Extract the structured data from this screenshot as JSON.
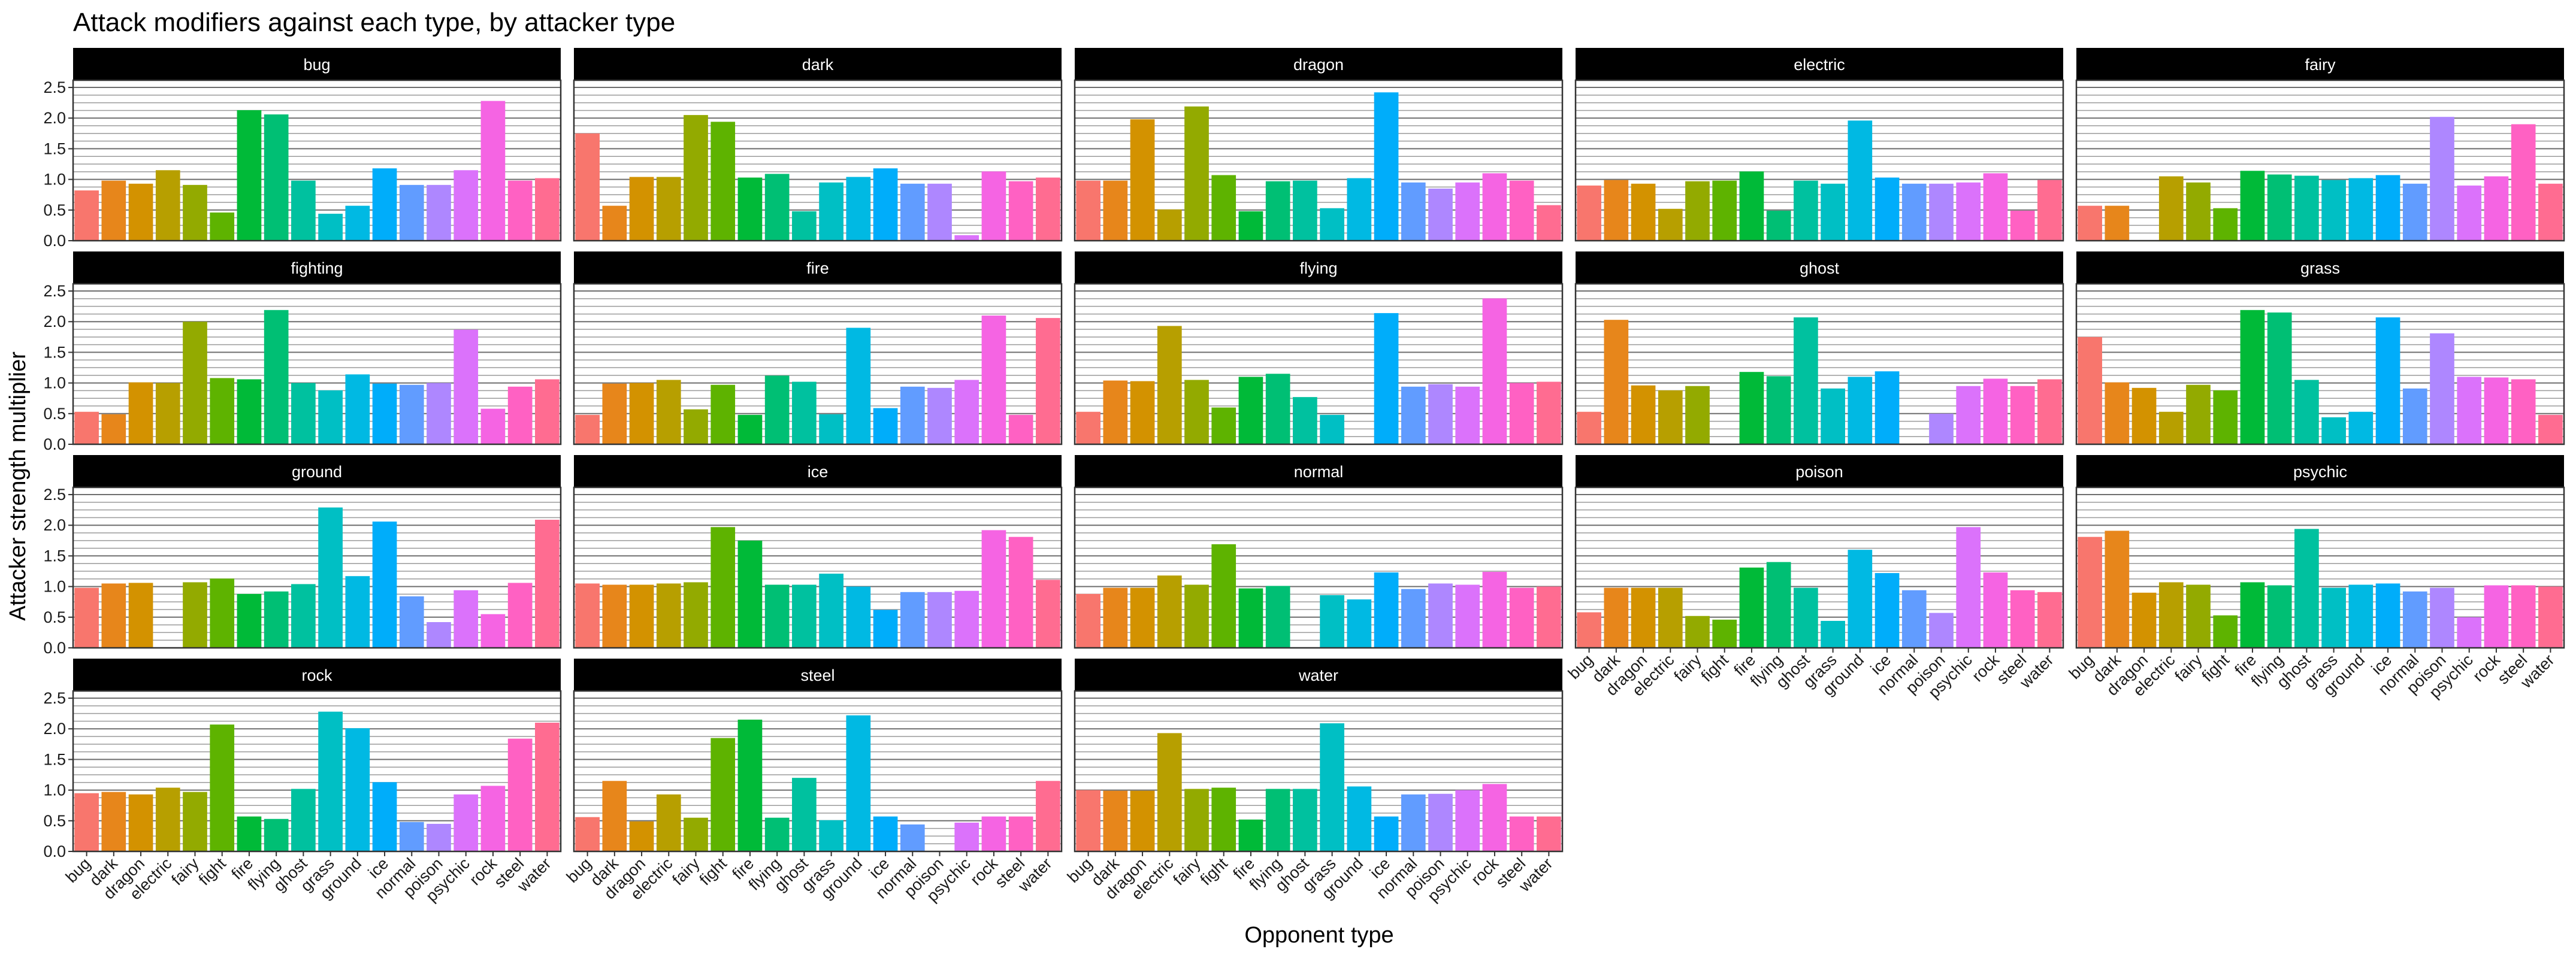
{
  "chart_data": {
    "type": "bar",
    "title": "Attack modifiers against each type, by attacker type",
    "xlabel": "Opponent type",
    "ylabel": "Attacker strength multiplier",
    "ylim": [
      0,
      2.5
    ],
    "yticks": [
      "0.0",
      "0.5",
      "1.0",
      "1.5",
      "2.0",
      "2.5"
    ],
    "categories": [
      "bug",
      "dark",
      "dragon",
      "electric",
      "fairy",
      "fight",
      "fire",
      "flying",
      "ghost",
      "grass",
      "ground",
      "ice",
      "normal",
      "poison",
      "psychic",
      "rock",
      "steel",
      "water"
    ],
    "colors": [
      "#F8766D",
      "#E7861B",
      "#D39200",
      "#B79F00",
      "#93AA00",
      "#5EB300",
      "#00BA38",
      "#00BF74",
      "#00C19F",
      "#00BFC4",
      "#00B9E3",
      "#00ADFA",
      "#619CFF",
      "#AE87FF",
      "#DB72FB",
      "#F564E3",
      "#FF61C3",
      "#FF6C91"
    ],
    "facets": [
      {
        "name": "bug",
        "values": [
          0.82,
          0.98,
          0.93,
          1.15,
          0.91,
          0.46,
          2.13,
          2.06,
          0.98,
          0.44,
          0.57,
          1.18,
          0.91,
          0.91,
          1.15,
          2.28,
          0.98,
          1.02
        ]
      },
      {
        "name": "dark",
        "values": [
          1.75,
          0.57,
          1.04,
          1.04,
          2.05,
          1.94,
          1.03,
          1.09,
          0.48,
          0.95,
          1.04,
          1.18,
          0.93,
          0.93,
          0.09,
          1.13,
          0.97,
          1.03
        ]
      },
      {
        "name": "dragon",
        "values": [
          0.98,
          0.98,
          1.98,
          0.51,
          2.19,
          1.07,
          0.48,
          0.97,
          0.98,
          0.53,
          1.02,
          2.42,
          0.95,
          0.85,
          0.95,
          1.1,
          0.98,
          0.58
        ]
      },
      {
        "name": "electric",
        "values": [
          0.9,
          0.99,
          0.93,
          0.52,
          0.97,
          0.98,
          1.13,
          0.49,
          0.98,
          0.93,
          1.96,
          1.03,
          0.93,
          0.93,
          0.95,
          1.1,
          0.49,
          0.99
        ]
      },
      {
        "name": "fairy",
        "values": [
          0.57,
          0.57,
          0.0,
          1.05,
          0.95,
          0.53,
          1.14,
          1.08,
          1.06,
          0.99,
          1.02,
          1.07,
          0.93,
          2.02,
          0.9,
          1.05,
          1.9,
          0.93
        ]
      },
      {
        "name": "fighting",
        "values": [
          0.53,
          0.49,
          1.01,
          1.0,
          2.0,
          1.08,
          1.06,
          2.19,
          1.0,
          0.88,
          1.14,
          0.99,
          0.97,
          1.0,
          1.87,
          0.58,
          0.94,
          1.06
        ]
      },
      {
        "name": "fire",
        "values": [
          0.48,
          0.99,
          1.0,
          1.05,
          0.57,
          0.97,
          0.48,
          1.12,
          1.02,
          0.49,
          1.9,
          0.59,
          0.94,
          0.92,
          1.05,
          2.1,
          0.48,
          2.06
        ]
      },
      {
        "name": "flying",
        "values": [
          0.53,
          1.04,
          1.03,
          1.93,
          1.05,
          0.6,
          1.1,
          1.15,
          0.77,
          0.48,
          0.0,
          2.14,
          0.94,
          0.98,
          0.94,
          2.38,
          1.0,
          1.02
        ]
      },
      {
        "name": "ghost",
        "values": [
          0.53,
          2.03,
          0.96,
          0.88,
          0.95,
          0.0,
          1.18,
          1.11,
          2.07,
          0.91,
          1.1,
          1.19,
          0.0,
          0.5,
          0.95,
          1.07,
          0.95,
          1.06
        ]
      },
      {
        "name": "grass",
        "values": [
          1.75,
          1.01,
          0.92,
          0.53,
          0.97,
          0.88,
          2.19,
          2.15,
          1.05,
          0.44,
          0.53,
          2.07,
          0.91,
          1.81,
          1.1,
          1.09,
          1.06,
          0.48
        ]
      },
      {
        "name": "ground",
        "values": [
          0.98,
          1.05,
          1.06,
          0.0,
          1.07,
          1.13,
          0.88,
          0.92,
          1.04,
          2.29,
          1.17,
          2.06,
          0.84,
          0.42,
          0.94,
          0.55,
          1.06,
          2.09
        ]
      },
      {
        "name": "ice",
        "values": [
          1.05,
          1.03,
          1.03,
          1.05,
          1.07,
          1.97,
          1.75,
          1.03,
          1.03,
          1.21,
          1.0,
          0.62,
          0.91,
          0.91,
          0.93,
          1.92,
          1.81,
          1.11
        ]
      },
      {
        "name": "normal",
        "values": [
          0.88,
          0.98,
          0.98,
          1.18,
          1.03,
          1.69,
          0.97,
          1.01,
          0.0,
          0.86,
          0.79,
          1.23,
          0.96,
          1.05,
          1.03,
          1.24,
          0.98,
          1.0
        ]
      },
      {
        "name": "poison",
        "values": [
          0.58,
          0.98,
          0.98,
          0.98,
          0.52,
          0.46,
          1.31,
          1.4,
          0.98,
          0.44,
          1.6,
          1.22,
          0.94,
          0.57,
          1.97,
          1.23,
          0.94,
          0.91
        ]
      },
      {
        "name": "psychic",
        "values": [
          1.81,
          1.91,
          0.9,
          1.07,
          1.03,
          0.53,
          1.07,
          1.02,
          1.94,
          0.98,
          1.03,
          1.05,
          0.92,
          0.98,
          0.5,
          1.02,
          1.02,
          1.0
        ]
      },
      {
        "name": "rock",
        "values": [
          0.95,
          0.97,
          0.93,
          1.04,
          0.97,
          2.07,
          0.57,
          0.53,
          1.02,
          2.28,
          2.01,
          1.13,
          0.48,
          0.45,
          0.93,
          1.07,
          1.84,
          2.1
        ]
      },
      {
        "name": "steel",
        "values": [
          0.56,
          1.15,
          0.49,
          0.93,
          0.55,
          1.85,
          2.15,
          0.55,
          1.2,
          0.51,
          2.22,
          0.57,
          0.44,
          0.0,
          0.47,
          0.57,
          0.57,
          1.15
        ]
      },
      {
        "name": "water",
        "values": [
          1.0,
          0.99,
          0.99,
          1.93,
          1.02,
          1.04,
          0.52,
          1.02,
          1.02,
          2.09,
          1.06,
          0.57,
          0.93,
          0.94,
          1.0,
          1.1,
          0.57,
          0.57
        ]
      }
    ]
  }
}
